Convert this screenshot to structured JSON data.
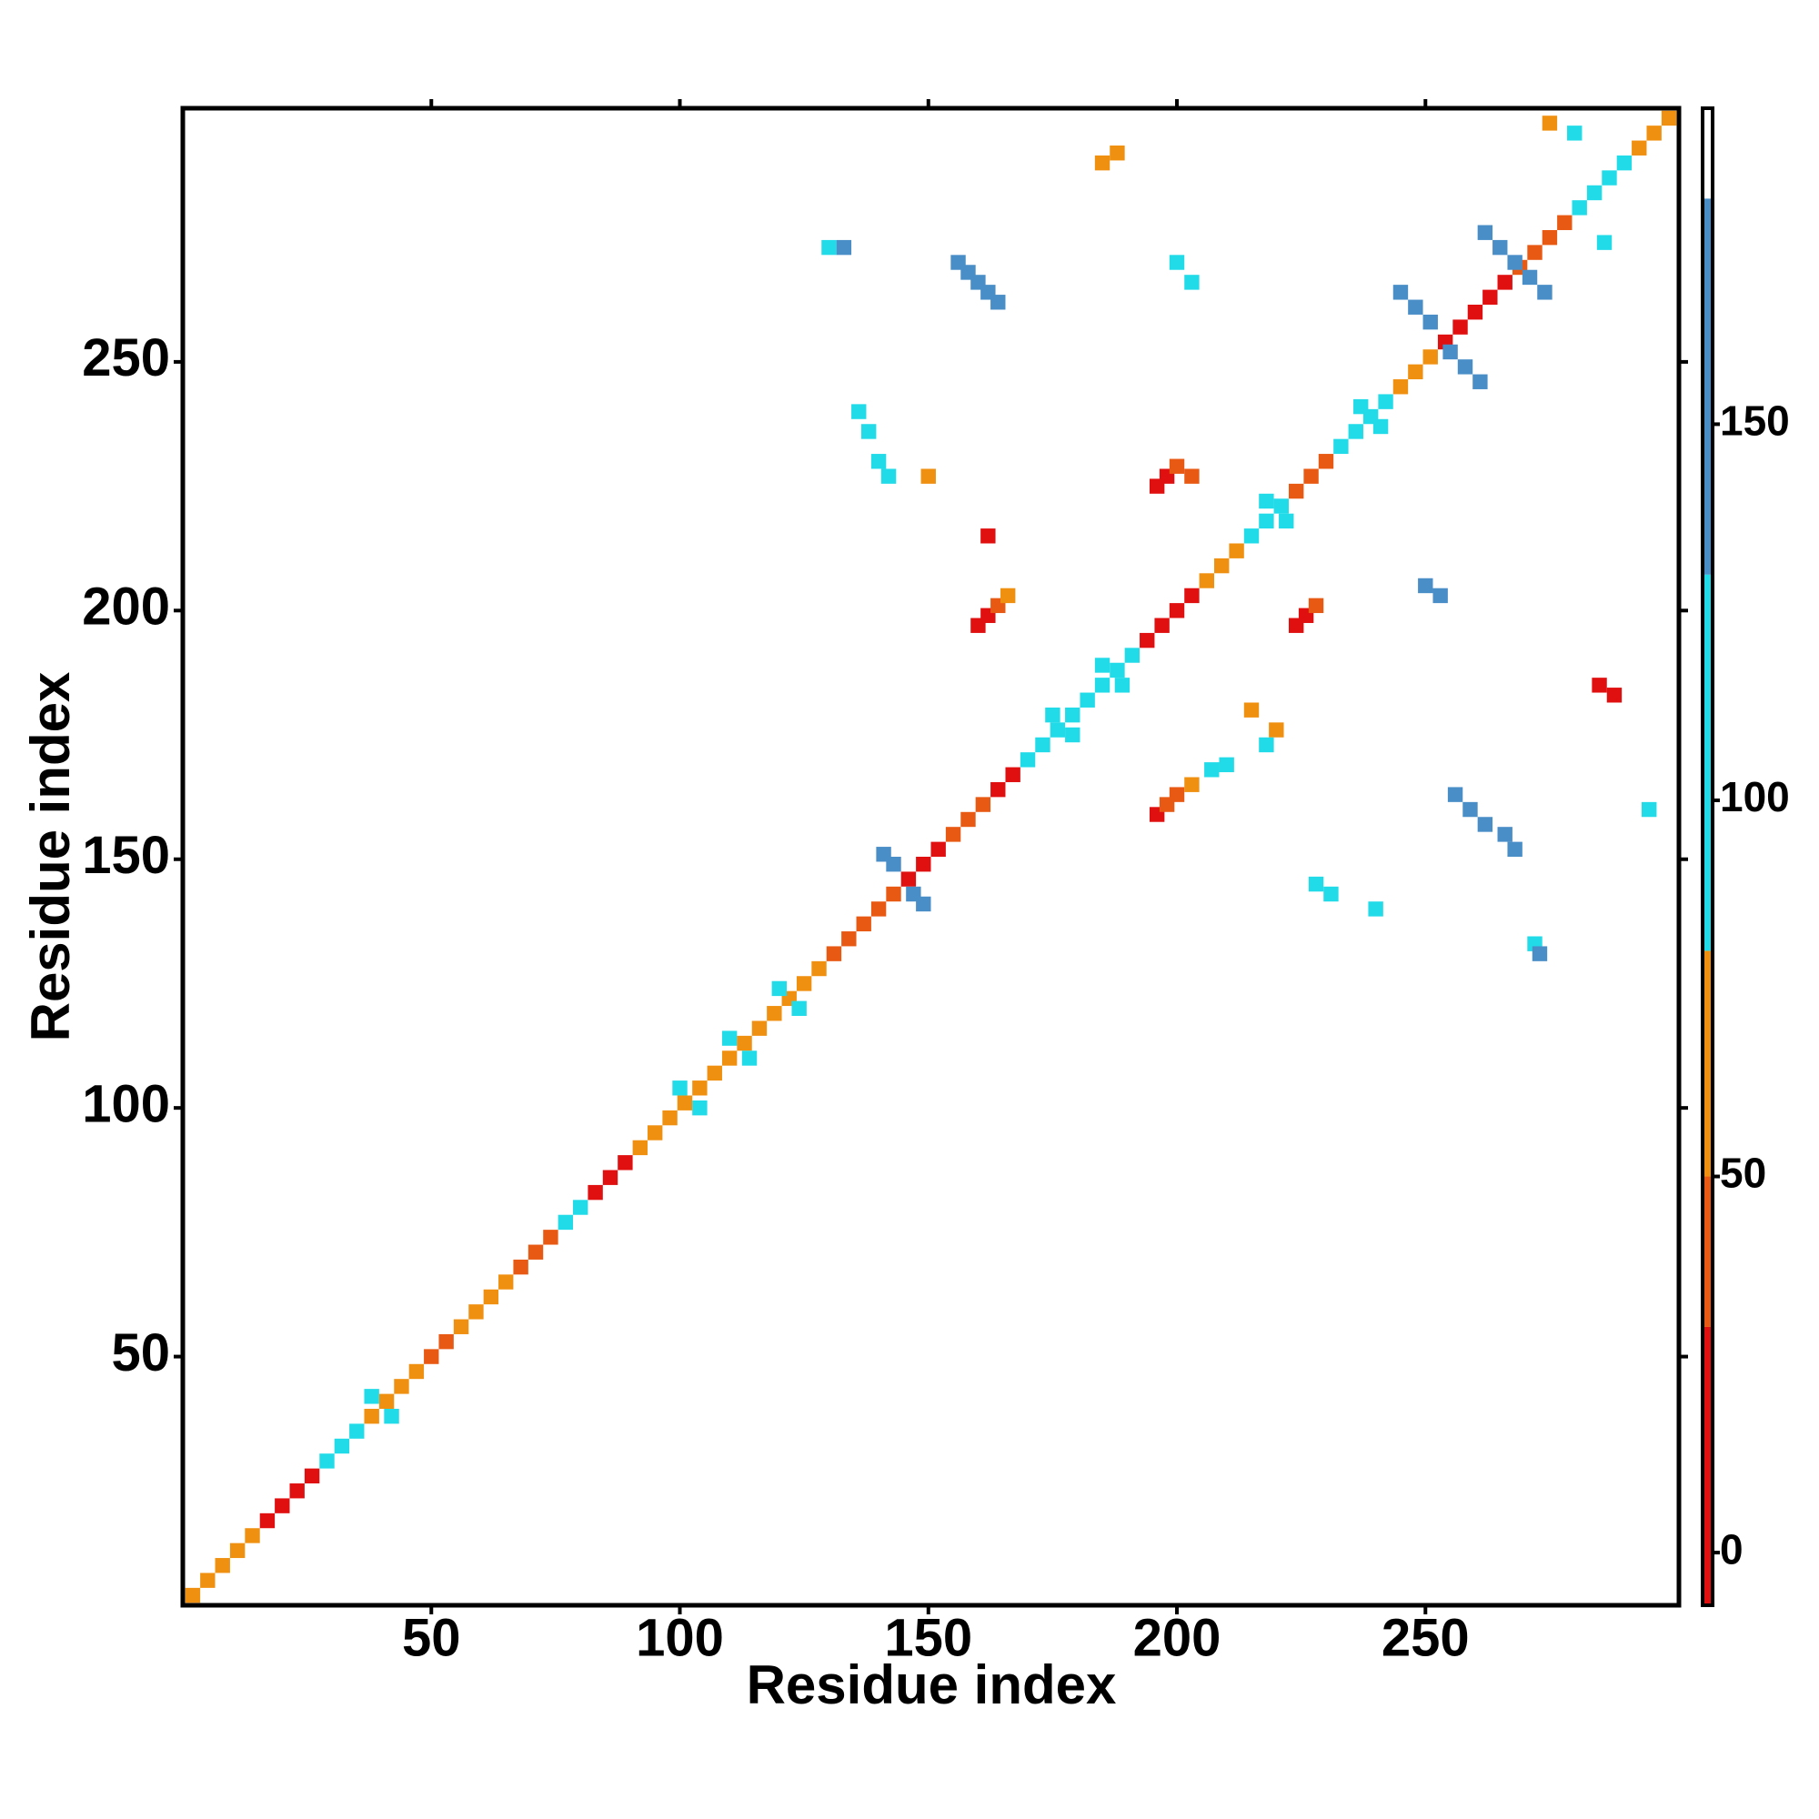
{
  "chart_data": {
    "type": "heatmap",
    "xlabel": "Residue index",
    "ylabel": "Residue index",
    "xlim": [
      0,
      301
    ],
    "ylim": [
      0,
      301
    ],
    "xticks": [
      50,
      100,
      150,
      200,
      250
    ],
    "yticks": [
      50,
      100,
      150,
      200,
      250
    ],
    "x": [
      2,
      5,
      8,
      11,
      14,
      17,
      20,
      23,
      26,
      29,
      32,
      35,
      38,
      41,
      44,
      47,
      50,
      53,
      56,
      59,
      62,
      65,
      68,
      71,
      74,
      77,
      80,
      83,
      86,
      89,
      92,
      95,
      98,
      101,
      104,
      107,
      110,
      113,
      116,
      119,
      122,
      125,
      128,
      131,
      134,
      137,
      140,
      143,
      146,
      149,
      152,
      155,
      158,
      161,
      164,
      167,
      170,
      173,
      176,
      179,
      182,
      185,
      188,
      191,
      194,
      197,
      200,
      203,
      206,
      209,
      212,
      215,
      218,
      221,
      224,
      227,
      230,
      233,
      236,
      239,
      242,
      245,
      248,
      251,
      254,
      257,
      260,
      263,
      266,
      269,
      272,
      275,
      278,
      281,
      284,
      287,
      290,
      293,
      296,
      299,
      100,
      104,
      110,
      114,
      120,
      124,
      38,
      42,
      175,
      179,
      185,
      189,
      218,
      222,
      237,
      241,
      130,
      133,
      156,
      158,
      160,
      162,
      164,
      262,
      265,
      268,
      271,
      274,
      245,
      248,
      251,
      255,
      258,
      261,
      160,
      162,
      164,
      166,
      196,
      198,
      200,
      203,
      196,
      198,
      200,
      203,
      224,
      226,
      228,
      141,
      143,
      147,
      149,
      256,
      259,
      262,
      266,
      268,
      228,
      231,
      240,
      272,
      273,
      136,
      138,
      140,
      142,
      150,
      162,
      215,
      220,
      285,
      288,
      275,
      280,
      286,
      185,
      188,
      200,
      203,
      250,
      253,
      295,
      218,
      207,
      210
    ],
    "y": [
      2,
      5,
      8,
      11,
      14,
      17,
      20,
      23,
      26,
      29,
      32,
      35,
      38,
      41,
      44,
      47,
      50,
      53,
      56,
      59,
      62,
      65,
      68,
      71,
      74,
      77,
      80,
      83,
      86,
      89,
      92,
      95,
      98,
      101,
      104,
      107,
      110,
      113,
      116,
      119,
      122,
      125,
      128,
      131,
      134,
      137,
      140,
      143,
      146,
      149,
      152,
      155,
      158,
      161,
      164,
      167,
      170,
      173,
      176,
      179,
      182,
      185,
      188,
      191,
      194,
      197,
      200,
      203,
      206,
      209,
      212,
      215,
      218,
      221,
      224,
      227,
      230,
      233,
      236,
      239,
      242,
      245,
      248,
      251,
      254,
      257,
      260,
      263,
      266,
      269,
      272,
      275,
      278,
      281,
      284,
      287,
      290,
      293,
      296,
      299,
      104,
      100,
      114,
      110,
      124,
      120,
      42,
      38,
      179,
      175,
      189,
      185,
      222,
      218,
      241,
      237,
      273,
      273,
      270,
      268,
      266,
      264,
      262,
      276,
      273,
      270,
      267,
      264,
      264,
      261,
      258,
      252,
      249,
      246,
      197,
      199,
      201,
      203,
      225,
      227,
      229,
      227,
      159,
      161,
      163,
      165,
      197,
      199,
      201,
      151,
      149,
      143,
      141,
      163,
      160,
      157,
      155,
      152,
      145,
      143,
      140,
      133,
      131,
      240,
      236,
      230,
      227,
      227,
      215,
      180,
      176,
      185,
      183,
      298,
      296,
      274,
      290,
      292,
      270,
      266,
      205,
      203,
      160,
      173,
      168,
      169
    ],
    "values": [
      65,
      65,
      65,
      65,
      65,
      10,
      10,
      10,
      10,
      100,
      100,
      100,
      65,
      65,
      65,
      65,
      40,
      40,
      65,
      65,
      65,
      65,
      40,
      40,
      40,
      100,
      100,
      10,
      10,
      10,
      65,
      65,
      65,
      65,
      65,
      65,
      65,
      65,
      65,
      65,
      65,
      65,
      65,
      40,
      40,
      40,
      40,
      40,
      10,
      10,
      10,
      40,
      40,
      40,
      10,
      10,
      100,
      100,
      100,
      100,
      100,
      100,
      100,
      100,
      10,
      10,
      10,
      10,
      65,
      65,
      65,
      100,
      100,
      100,
      40,
      40,
      40,
      100,
      100,
      100,
      100,
      65,
      65,
      65,
      10,
      10,
      10,
      10,
      10,
      40,
      40,
      40,
      40,
      100,
      100,
      100,
      100,
      65,
      65,
      65,
      100,
      100,
      100,
      100,
      100,
      100,
      100,
      100,
      100,
      100,
      100,
      100,
      100,
      100,
      100,
      100,
      100,
      150,
      150,
      150,
      150,
      150,
      150,
      150,
      150,
      150,
      150,
      150,
      150,
      150,
      150,
      150,
      150,
      150,
      10,
      10,
      40,
      65,
      10,
      10,
      40,
      40,
      10,
      40,
      40,
      65,
      10,
      10,
      40,
      150,
      150,
      150,
      150,
      150,
      150,
      150,
      150,
      150,
      100,
      100,
      100,
      100,
      150,
      100,
      100,
      100,
      100,
      65,
      10,
      65,
      65,
      10,
      10,
      65,
      100,
      100,
      65,
      65,
      100,
      100,
      150,
      150,
      100,
      100,
      100,
      100
    ],
    "colorbar": {
      "lim": [
        -7,
        192
      ],
      "ticks": [
        0,
        50,
        100,
        150
      ],
      "bands": [
        {
          "from": -7,
          "to": 30,
          "color": "#e01010"
        },
        {
          "from": 30,
          "to": 50,
          "color": "#e85a14"
        },
        {
          "from": 50,
          "to": 80,
          "color": "#f09010"
        },
        {
          "from": 80,
          "to": 130,
          "color": "#22dbe8"
        },
        {
          "from": 130,
          "to": 180,
          "color": "#4a8ec8"
        },
        {
          "from": 180,
          "to": 192,
          "color": "#ffffff"
        }
      ]
    }
  }
}
